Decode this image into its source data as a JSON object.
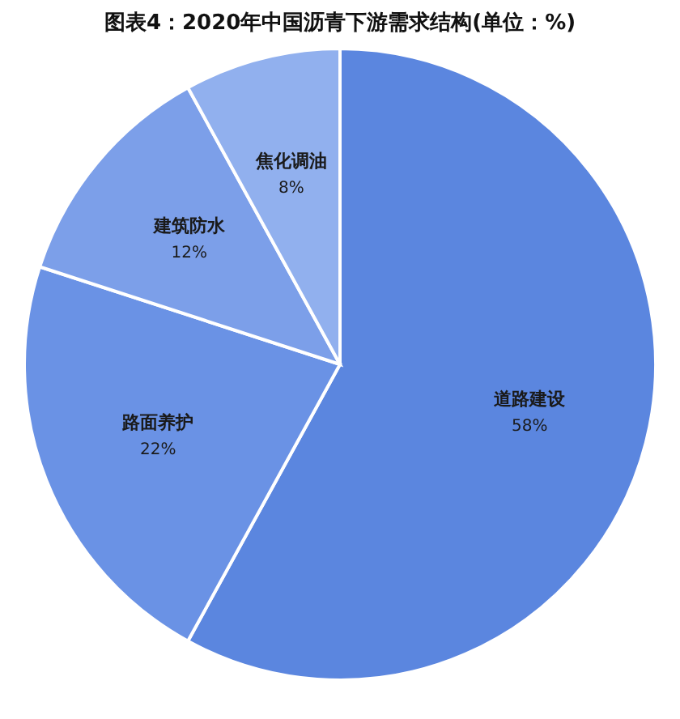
{
  "chart_data": {
    "type": "pie",
    "title": "图表4：2020年中国沥青下游需求结构(单位：%)",
    "categories": [
      "道路建设",
      "路面养护",
      "建筑防水",
      "焦化调油"
    ],
    "values": [
      58,
      22,
      12,
      8
    ],
    "colors": [
      "#5b86df",
      "#6a92e5",
      "#7c9fe9",
      "#91b0ee"
    ],
    "value_labels": [
      "58%",
      "22%",
      "12%",
      "8%"
    ],
    "legend": false
  }
}
